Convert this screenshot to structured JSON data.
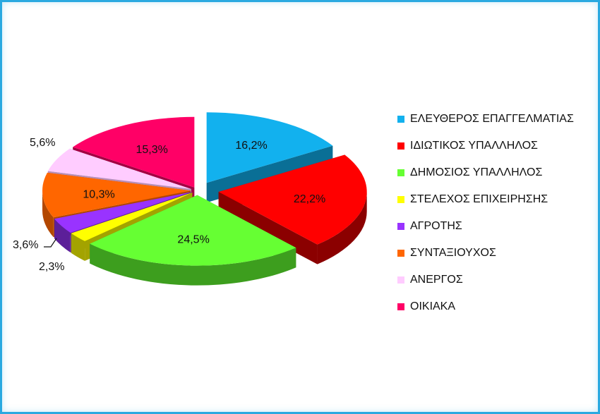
{
  "chart_data": {
    "type": "pie",
    "style": "3d-exploded",
    "categories": [
      "ΕΛΕΥΘΕΡΟΣ ΕΠΑΓΓΕΛΜΑΤΙΑΣ",
      "ΙΔΙΩΤΙΚΟΣ ΥΠΑΛΛΗΛΟΣ",
      "ΔΗΜΟΣΙΟΣ ΥΠΑΛΛΗΛΟΣ",
      "ΣΤΕΛΕΧΟΣ ΕΠΙΧΕΙΡΗΣΗΣ",
      "ΑΓΡΟΤΗΣ",
      "ΣΥΝΤΑΞΙΟΥΧΟΣ",
      "ΑΝΕΡΓΟΣ",
      "ΟΙΚΙΑΚΑ"
    ],
    "values": [
      16.2,
      22.2,
      24.5,
      2.3,
      3.6,
      10.3,
      5.6,
      15.3
    ],
    "labels": [
      "16,2%",
      "22,2%",
      "24,5%",
      "2,3%",
      "3,6%",
      "10,3%",
      "5,6%",
      "15,3%"
    ],
    "colors": [
      "#12b1ee",
      "#ff0000",
      "#66ff33",
      "#ffff00",
      "#9933ff",
      "#ff6600",
      "#ffccff",
      "#ff0066"
    ],
    "side_colors": [
      "#0a6f96",
      "#8b0000",
      "#3d9e1e",
      "#a3a300",
      "#5c1f99",
      "#b34700",
      "#b88fb8",
      "#a30042"
    ],
    "legend_position": "right"
  }
}
